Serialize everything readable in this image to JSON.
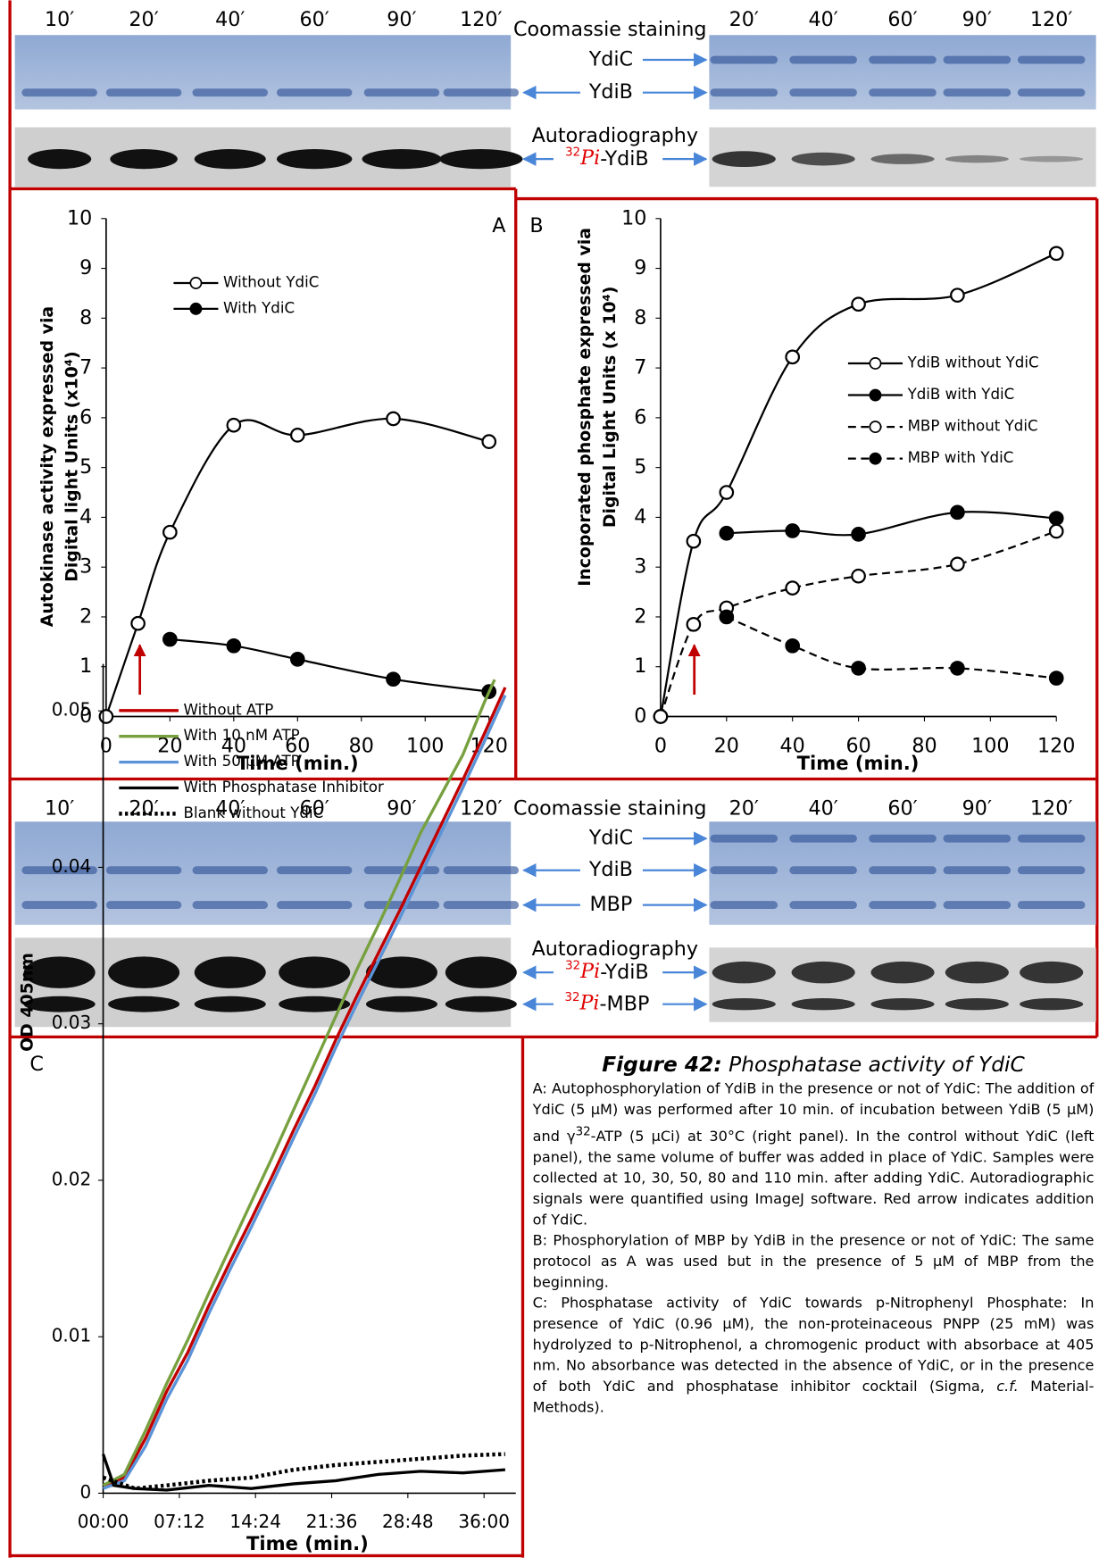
{
  "chart_data": [
    {
      "type": "line",
      "panel": "A",
      "smooth": true,
      "xlabel": "Time (min.)",
      "ylabel": [
        "Autokinase activity expressed via",
        "Digital light Units (x10⁴)"
      ],
      "xlim": [
        0,
        120
      ],
      "xticks": [
        0,
        20,
        40,
        60,
        80,
        100,
        120
      ],
      "ylim": [
        0,
        10
      ],
      "yticks": [
        0,
        1,
        2,
        3,
        4,
        5,
        6,
        7,
        8,
        9,
        10
      ],
      "legend": "upper left",
      "series": [
        {
          "name": "Without YdiC",
          "color": "#000000",
          "marker": "open",
          "line": "solid",
          "x": [
            0,
            10,
            20,
            40,
            60,
            90,
            120
          ],
          "values": [
            0,
            1.87,
            3.7,
            5.85,
            5.65,
            5.98,
            5.52
          ]
        },
        {
          "name": "With YdiC",
          "color": "#000000",
          "marker": "filled",
          "line": "solid",
          "x": [
            20,
            40,
            60,
            90,
            120
          ],
          "values": [
            1.55,
            1.42,
            1.15,
            0.75,
            0.5
          ]
        }
      ]
    },
    {
      "type": "line",
      "panel": "B",
      "smooth": true,
      "xlabel": "Time (min.)",
      "ylabel": [
        "Incoporated phosphate expressed via",
        "Digital Light Units (x 10⁴)"
      ],
      "xlim": [
        0,
        120
      ],
      "xticks": [
        0,
        20,
        40,
        60,
        80,
        100,
        120
      ],
      "ylim": [
        0,
        10
      ],
      "yticks": [
        0,
        1,
        2,
        3,
        4,
        5,
        6,
        7,
        8,
        9,
        10
      ],
      "legend": "center right",
      "series": [
        {
          "name": "YdiB without YdiC",
          "color": "#000000",
          "marker": "open",
          "line": "solid",
          "x": [
            0,
            10,
            20,
            40,
            60,
            90,
            120
          ],
          "values": [
            0,
            3.52,
            4.5,
            7.22,
            8.28,
            8.46,
            9.3
          ]
        },
        {
          "name": "YdiB with YdiC",
          "color": "#000000",
          "marker": "filled",
          "line": "solid",
          "x": [
            20,
            40,
            60,
            90,
            120
          ],
          "values": [
            3.68,
            3.73,
            3.66,
            4.1,
            3.98
          ]
        },
        {
          "name": "MBP without YdiC",
          "color": "#000000",
          "marker": "open",
          "line": "dashed",
          "x": [
            0,
            10,
            20,
            40,
            60,
            90,
            120
          ],
          "values": [
            0,
            1.85,
            2.18,
            2.58,
            2.82,
            3.06,
            3.72
          ]
        },
        {
          "name": "MBP with YdiC",
          "color": "#000000",
          "marker": "filled",
          "line": "dashed",
          "x": [
            20,
            40,
            60,
            90,
            120
          ],
          "values": [
            2.0,
            1.42,
            0.97,
            0.97,
            0.77
          ]
        }
      ]
    },
    {
      "type": "line",
      "panel": "C",
      "smooth": false,
      "xlabel": "Time (min.)",
      "ylabel": [
        "OD 405nm"
      ],
      "xlim": [
        0,
        39
      ],
      "xticks": [
        {
          "value": 0,
          "label": "00:00"
        },
        {
          "value": 7.2,
          "label": "07:12"
        },
        {
          "value": 14.4,
          "label": "14:24"
        },
        {
          "value": 21.6,
          "label": "21:36"
        },
        {
          "value": 28.8,
          "label": "28:48"
        },
        {
          "value": 36,
          "label": "36:00"
        }
      ],
      "ylim": [
        0,
        0.053
      ],
      "yticks": [
        0,
        0.01,
        0.02,
        0.03,
        0.04,
        0.05
      ],
      "legend": "upper left",
      "series": [
        {
          "name": "Without ATP",
          "color": "#c00000",
          "marker": null,
          "line": "solid",
          "x": [
            0,
            2,
            4,
            6,
            8,
            10,
            12,
            14,
            16,
            18,
            20,
            22,
            24,
            26,
            28,
            30,
            32,
            34,
            36,
            38
          ],
          "values": [
            0.0005,
            0.001,
            0.0035,
            0.0065,
            0.009,
            0.012,
            0.0148,
            0.0175,
            0.0203,
            0.0232,
            0.026,
            0.029,
            0.0318,
            0.0345,
            0.0372,
            0.04,
            0.0428,
            0.0456,
            0.0485,
            0.0515
          ]
        },
        {
          "name": "With 10 nM ATP",
          "color": "#77a03f",
          "marker": null,
          "line": "solid",
          "x": [
            0,
            2,
            4,
            6,
            8,
            10,
            12,
            14,
            16,
            18,
            20,
            22,
            24,
            26,
            28,
            30,
            32,
            34,
            36,
            37
          ],
          "values": [
            0.0005,
            0.0012,
            0.004,
            0.007,
            0.0098,
            0.0128,
            0.0157,
            0.0186,
            0.0215,
            0.0245,
            0.0275,
            0.0305,
            0.0335,
            0.0363,
            0.0392,
            0.0422,
            0.0447,
            0.0472,
            0.0505,
            0.052
          ]
        },
        {
          "name": "With 50 µM ATP",
          "color": "#5b93d8",
          "marker": null,
          "line": "solid",
          "x": [
            0,
            2,
            4,
            6,
            8,
            10,
            12,
            14,
            16,
            18,
            20,
            22,
            24,
            26,
            28,
            30,
            32,
            34,
            36,
            38
          ],
          "values": [
            0.0003,
            0.0008,
            0.003,
            0.006,
            0.0085,
            0.0115,
            0.0143,
            0.017,
            0.0198,
            0.0227,
            0.0255,
            0.0285,
            0.0313,
            0.034,
            0.0367,
            0.0395,
            0.0423,
            0.0451,
            0.048,
            0.051
          ]
        },
        {
          "name": "With Phosphatase Inhibitor",
          "color": "#000000",
          "marker": null,
          "line": "solid",
          "x": [
            0,
            1,
            3,
            6,
            10,
            14,
            18,
            22,
            26,
            30,
            34,
            38
          ],
          "values": [
            0.0025,
            0.0005,
            0.0003,
            0.0002,
            0.0005,
            0.0003,
            0.0006,
            0.0008,
            0.0012,
            0.0014,
            0.0013,
            0.0015
          ]
        },
        {
          "name": "Blank without YdiC",
          "color": "#000000",
          "marker": null,
          "line": "dotted",
          "x": [
            0,
            3,
            6,
            10,
            14,
            18,
            22,
            26,
            30,
            34,
            38
          ],
          "values": [
            0.001,
            0.0003,
            0.0005,
            0.0008,
            0.001,
            0.0015,
            0.0018,
            0.002,
            0.0022,
            0.0024,
            0.0025
          ]
        }
      ]
    }
  ],
  "gels": [
    {
      "lanes_left": [
        "10′",
        "20′",
        "40′",
        "60′",
        "90′",
        "120′"
      ],
      "lanes_right": [
        "20′",
        "40′",
        "60′",
        "90′",
        "120′"
      ],
      "staining": "Coomassie staining",
      "bands": [
        "YdiC",
        "YdiB"
      ],
      "autoradiography": "Autoradiography",
      "radio_bands": [
        {
          "sup": "32",
          "italic": "Pi",
          "text": "-YdiB"
        }
      ]
    },
    {
      "lanes_left": [
        "10′",
        "20′",
        "40′",
        "60′",
        "90′",
        "120′"
      ],
      "lanes_right": [
        "20′",
        "40′",
        "60′",
        "90′",
        "120′"
      ],
      "staining": "Coomassie staining",
      "bands": [
        "YdiC",
        "YdiB",
        "MBP"
      ],
      "autoradiography": "Autoradiography",
      "radio_bands": [
        {
          "sup": "32",
          "italic": "Pi",
          "text": "-YdiB"
        },
        {
          "sup": "32",
          "italic": "Pi",
          "text": "-MBP"
        }
      ]
    }
  ],
  "caption": {
    "title": "Figure 42:",
    "subtitle": " Phosphatase activity of YdiC",
    "paragraphs": [
      [
        "A: Autophosphorylation of YdiB in the presence or not of YdiC: The addition of YdiC (5 µM) was performed after 10 min. of incubation between YdiB (5 µM) and γ",
        "32",
        "-ATP (5 µCi) at 30°C (right panel). In the control without YdiC (left panel), the same volume of buffer was added in place of YdiC. Samples were collected at 10, 30, 50, 80 and 110 min. after adding YdiC. Autoradiographic signals were quantified using ImageJ software. Red arrow indicates addition of YdiC."
      ],
      [
        "B: Phosphorylation of MBP by YdiB in the presence or not of YdiC: The same protocol as A was used but in the presence of 5 µM of MBP from the beginning."
      ],
      [
        "C: Phosphatase activity of YdiC towards p-Nitrophenyl Phosphate: In presence of YdiC (0.96 µM), the non-proteinaceous PNPP (25 mM) was hydrolyzed to p-Nitrophenol, a chromogenic product with absorbace at 405 nm. No absorbance was detected in the absence of YdiC, or in the presence of both YdiC and phosphatase inhibitor cocktail (Sigma, ",
        "c.f.",
        " Material-Methods)."
      ]
    ]
  }
}
